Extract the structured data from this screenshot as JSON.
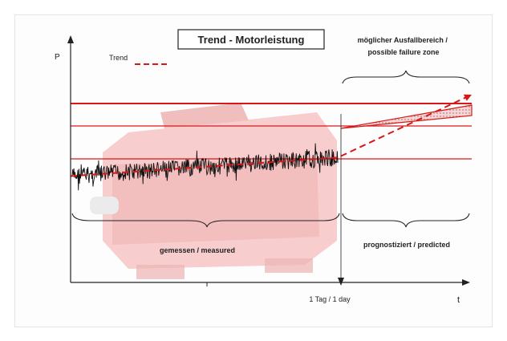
{
  "chart_data": {
    "type": "line",
    "title": "Trend - Motorleistung",
    "ylabel": "P",
    "xlabel": "t",
    "x_tick_label": "1 Tag / 1 day",
    "legend": {
      "label": "Trend",
      "placement": "top-left"
    },
    "annotations": {
      "failure_zone": "möglicher Ausfallbereich / possible failure zone",
      "measured": "gemessen / measured",
      "predicted": "prognostiziert / predicted"
    },
    "grid": false,
    "colors": {
      "signal": "#111111",
      "threshold": "#d81818",
      "trend": "#d81818",
      "zone_fill": "#f2c9c9",
      "motor_tint": "#f3b3b3"
    },
    "series": [
      {
        "name": "Trend",
        "style": "dashed",
        "x": [
          0,
          1,
          1.5
        ],
        "values": [
          0.45,
          0.53,
          0.8
        ]
      }
    ],
    "xlim": [
      0,
      1.5
    ],
    "ylim": [
      0,
      1
    ]
  }
}
